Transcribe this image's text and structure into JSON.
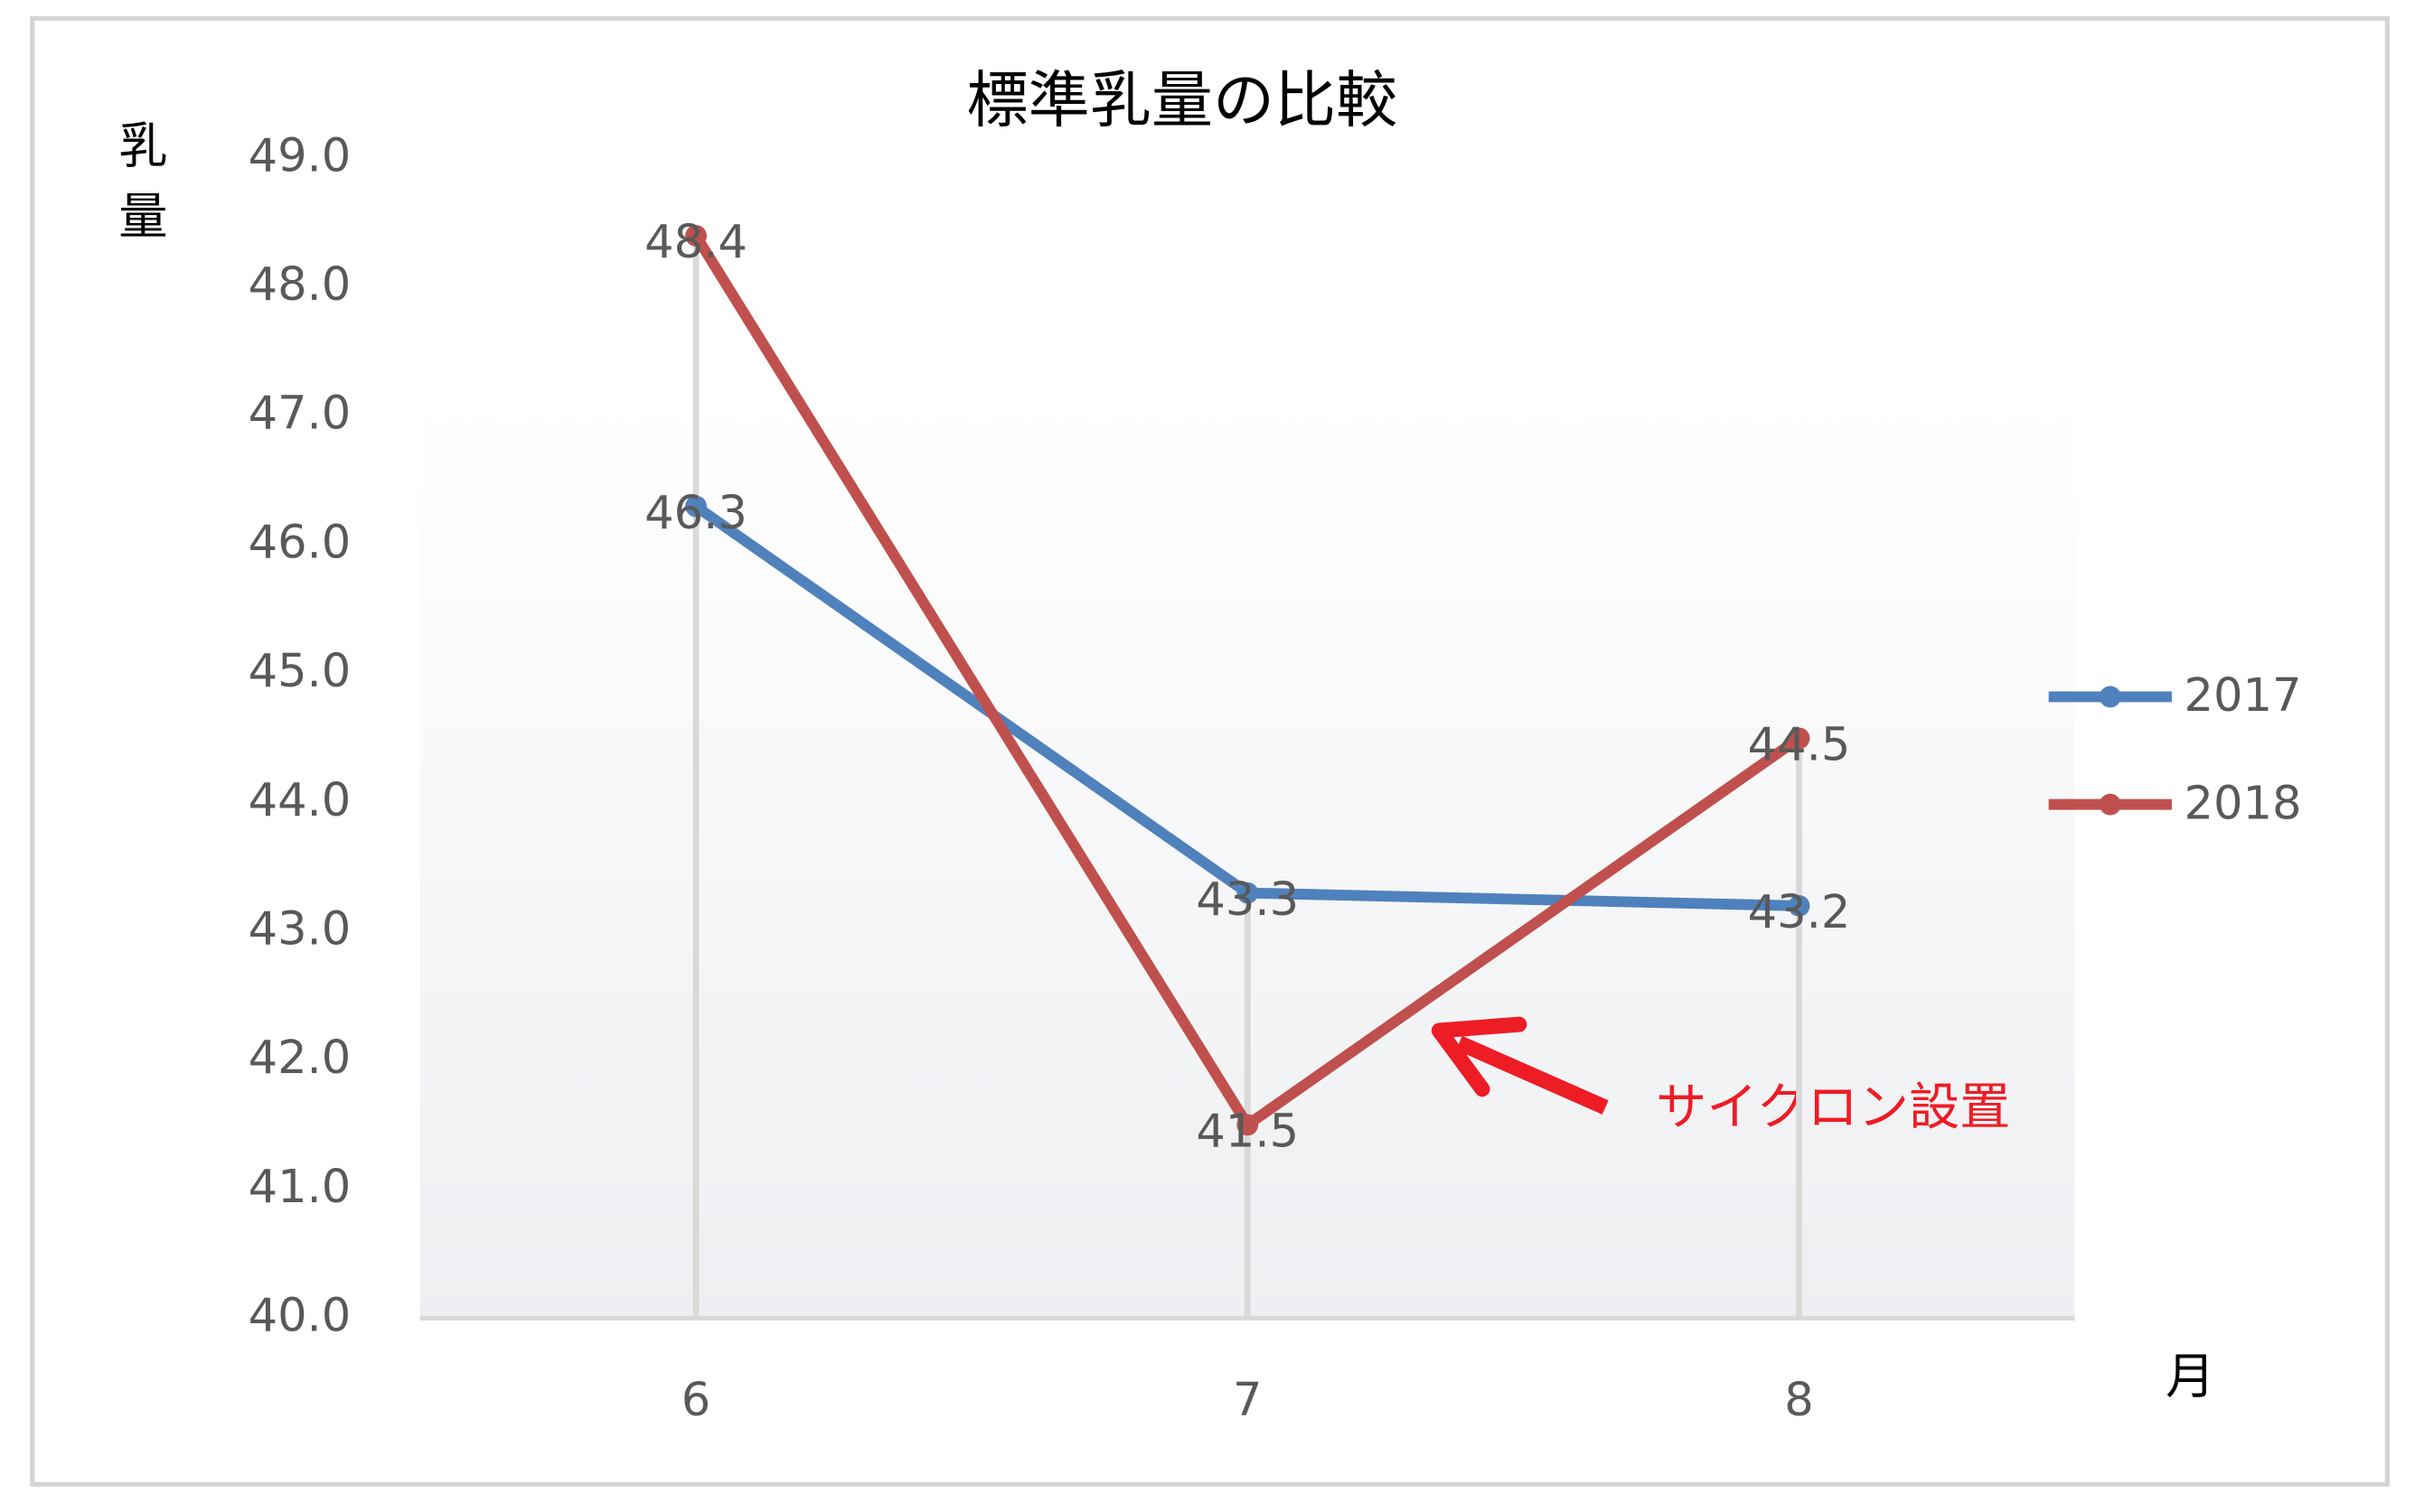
{
  "chart_data": {
    "type": "line",
    "title": "標準乳量の比較",
    "y_label": "乳量",
    "x_label": "月",
    "categories": [
      "6",
      "7",
      "8"
    ],
    "series": [
      {
        "name": "2017",
        "color": "#4f81bd",
        "values": [
          46.3,
          43.3,
          43.2
        ]
      },
      {
        "name": "2018",
        "color": "#c0504d",
        "values": [
          48.4,
          41.5,
          44.5
        ]
      }
    ],
    "ylim": [
      40,
      49
    ],
    "yticks": [
      {
        "value": 40,
        "label": "40.0"
      },
      {
        "value": 41,
        "label": "41.0"
      },
      {
        "value": 42,
        "label": "42.0"
      },
      {
        "value": 43,
        "label": "43.0"
      },
      {
        "value": 44,
        "label": "44.0"
      },
      {
        "value": 45,
        "label": "45.0"
      },
      {
        "value": 46,
        "label": "46.0"
      },
      {
        "value": 47,
        "label": "47.0"
      },
      {
        "value": 48,
        "label": "48.0"
      },
      {
        "value": 49,
        "label": "49.0"
      }
    ],
    "legend": "right",
    "annotation": "サイクロン設置",
    "annotation_color": "#ee1c25"
  }
}
